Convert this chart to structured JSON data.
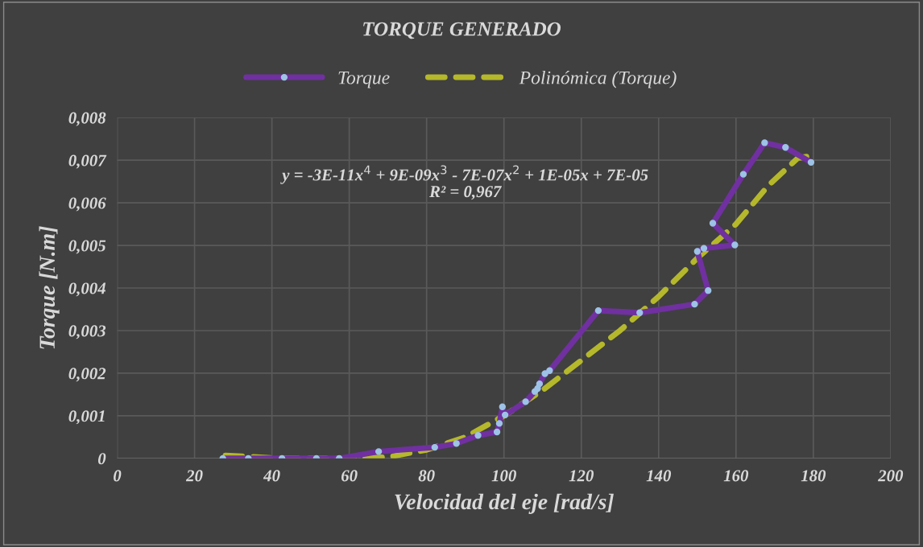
{
  "chart_data": {
    "type": "line",
    "title": "TORQUE GENERADO",
    "xlabel": "Velocidad del eje [rad/s]",
    "ylabel": "Torque [N.m]",
    "xlim": [
      0,
      200
    ],
    "xticks": [
      0,
      20,
      40,
      60,
      80,
      100,
      120,
      140,
      160,
      180,
      200
    ],
    "ylim": [
      0,
      0.008
    ],
    "yticks": [
      {
        "value": 0,
        "label": "0"
      },
      {
        "value": 0.001,
        "label": "0,001"
      },
      {
        "value": 0.002,
        "label": "0,002"
      },
      {
        "value": 0.003,
        "label": "0,003"
      },
      {
        "value": 0.004,
        "label": "0,004"
      },
      {
        "value": 0.005,
        "label": "0,005"
      },
      {
        "value": 0.006,
        "label": "0,006"
      },
      {
        "value": 0.007,
        "label": "0,007"
      },
      {
        "value": 0.008,
        "label": "0,008"
      }
    ],
    "grid": true,
    "legend": "top",
    "series": [
      {
        "name": "Torque",
        "color": "#7030a0",
        "marker": "circle",
        "line_style": "solid",
        "x": [
          27.3,
          33.9,
          42.6,
          51.5,
          57.4,
          67.6,
          82.1,
          87.7,
          93.3,
          98.2,
          98.8,
          99.6,
          100.3,
          105.6,
          108.0,
          108.7,
          109.2,
          110.6,
          111.8,
          124.4,
          135.1,
          149.3,
          152.8,
          150.0,
          151.7,
          159.7,
          154.0,
          161.9,
          167.4,
          172.8,
          179.4
        ],
        "values": [
          0,
          0,
          0,
          0,
          0,
          0.00016,
          0.00026,
          0.00035,
          0.00054,
          0.00062,
          0.00082,
          0.00121,
          0.00102,
          0.00133,
          0.00157,
          0.00164,
          0.00175,
          0.00199,
          0.00206,
          0.00347,
          0.00342,
          0.00362,
          0.00394,
          0.00486,
          0.00493,
          0.00501,
          0.00552,
          0.00667,
          0.00741,
          0.0073,
          0.00695
        ]
      },
      {
        "name": "Polinómica (Torque)",
        "color": "#b5b82a",
        "marker": "none",
        "line_style": "dashed",
        "x": [
          28,
          40,
          50,
          60,
          70,
          80,
          90,
          100,
          110,
          120,
          130,
          140,
          150,
          160,
          168.3,
          176,
          179.4
        ],
        "values": [
          7e-05,
          1e-05,
          0.0,
          0.0,
          3e-05,
          0.0002,
          0.0005,
          0.001,
          0.0016,
          0.0023,
          0.003,
          0.0038,
          0.0047,
          0.0055,
          0.0064,
          0.00705,
          0.0071
        ]
      }
    ],
    "annotations": [
      "y = -3E-11x$^{4}$ + 9E-09x$^{3}$ - 7E-07x$^{2}$ + 1E-05x + 7E-05\nR² = 0,967"
    ]
  }
}
